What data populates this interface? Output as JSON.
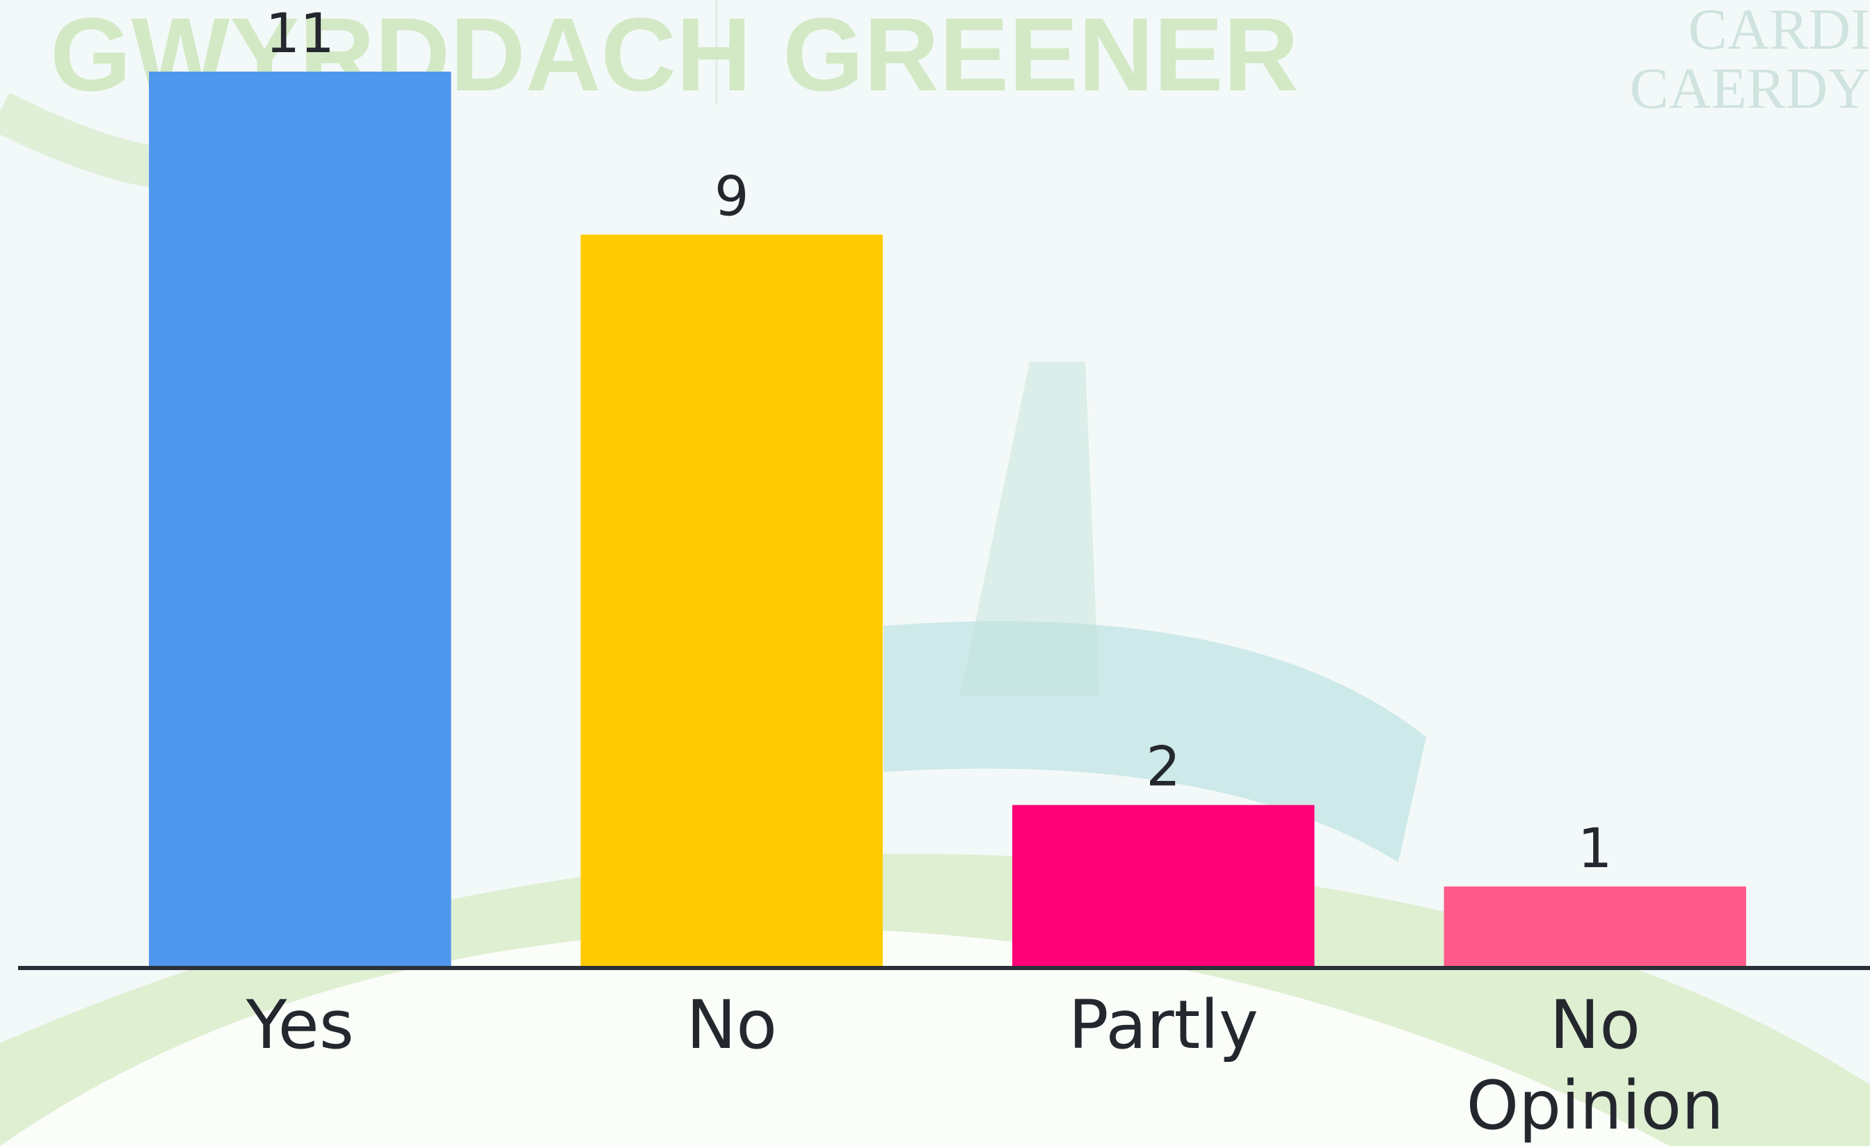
{
  "watermark_texts": [
    "GWYRDDACH",
    "GREENER",
    "CARDI",
    "CAERDY"
  ],
  "chart_data": {
    "type": "bar",
    "categories": [
      "Yes",
      "No",
      "Partly",
      "No Opinion"
    ],
    "values": [
      11,
      9,
      2,
      1
    ],
    "colors": [
      "#4f97ed",
      "#ffcb00",
      "#ff0077",
      "#ff5a8a"
    ]
  }
}
